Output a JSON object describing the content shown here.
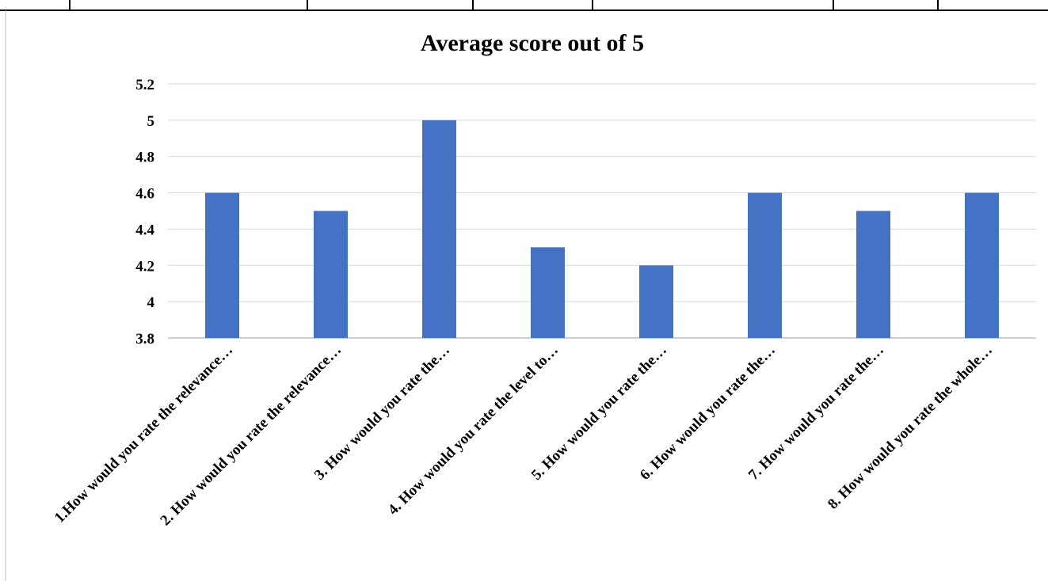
{
  "chart_data": {
    "type": "bar",
    "title": "Average score out of 5",
    "xlabel": "",
    "ylabel": "",
    "ylim": [
      3.8,
      5.2
    ],
    "y_ticks": [
      "5.2",
      "5",
      "4.8",
      "4.6",
      "4.4",
      "4.2",
      "4",
      "3.8"
    ],
    "y_tick_values": [
      5.2,
      5.0,
      4.8,
      4.6,
      4.4,
      4.2,
      4.0,
      3.8
    ],
    "categories": [
      "1.How would you rate the relevance…",
      "2. How would you rate the relevance…",
      "3. How would you rate the…",
      "4. How would you rate the level to…",
      "5. How would you rate the…",
      "6. How would you rate the…",
      "7. How would you rate the…",
      "8. How would you rate the whole…"
    ],
    "values": [
      4.6,
      4.5,
      5.0,
      4.3,
      4.2,
      4.6,
      4.5,
      4.6
    ],
    "grid": true,
    "legend": "none",
    "colors": {
      "bar": "#4472C4",
      "grid": "#D9D9D9",
      "axis": "#BFBFBF",
      "frame": "#000000"
    }
  }
}
